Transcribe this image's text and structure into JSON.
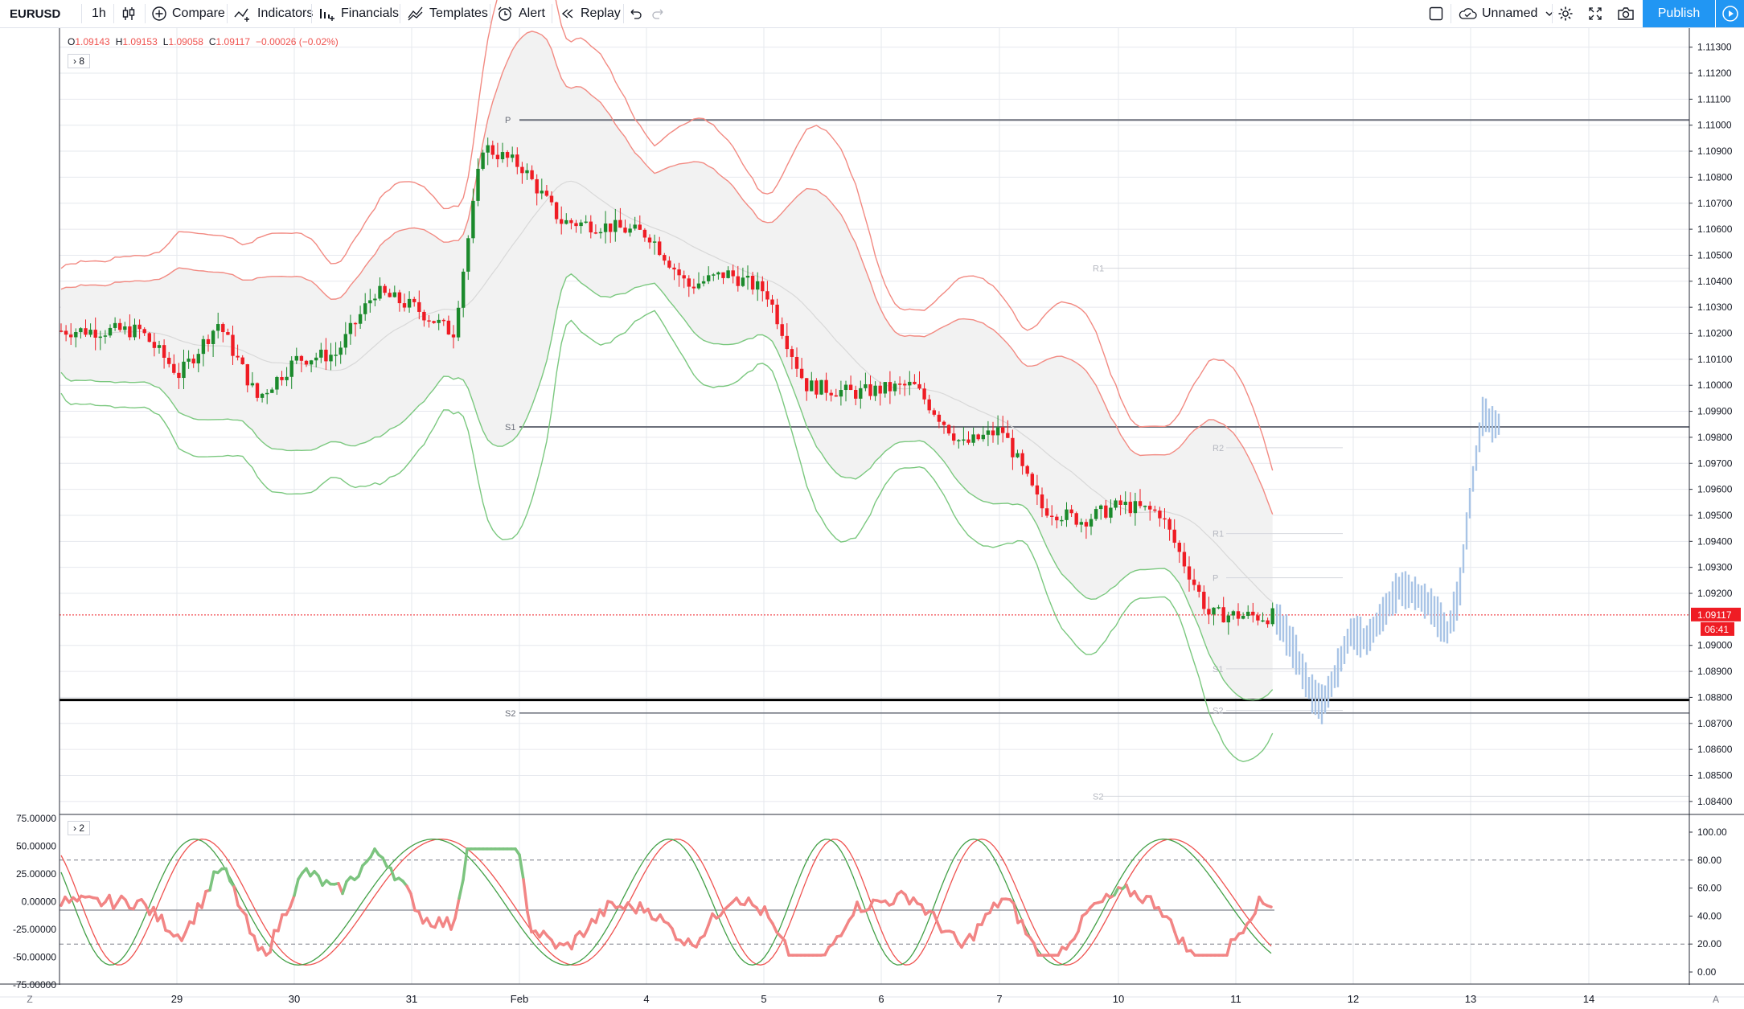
{
  "toolbar": {
    "symbol": "EURUSD",
    "interval": "1h",
    "compare": "Compare",
    "indicators": "Indicators",
    "financials": "Financials",
    "templates": "Templates",
    "alert": "Alert",
    "replay": "Replay",
    "layout_name": "Unnamed",
    "publish": "Publish"
  },
  "legend": {
    "ohlc": [
      {
        "k": "O",
        "v": "1.09143"
      },
      {
        "k": "H",
        "v": "1.09153"
      },
      {
        "k": "L",
        "v": "1.09058"
      },
      {
        "k": "C",
        "v": "1.09117"
      },
      {
        "k": "",
        "v": "−0.00026 (−0.02%)"
      }
    ],
    "main_indicators_count": "8",
    "osc_indicators_count": "2"
  },
  "price_axis": {
    "labels": [
      "1.11300",
      "1.11200",
      "1.11100",
      "1.11000",
      "1.10900",
      "1.10800",
      "1.10700",
      "1.10600",
      "1.10500",
      "1.10400",
      "1.10300",
      "1.10200",
      "1.10100",
      "1.10000",
      "1.09900",
      "1.09800",
      "1.09700",
      "1.09600",
      "1.09500",
      "1.09400",
      "1.09300",
      "1.09200",
      "1.09000",
      "1.08900",
      "1.08800",
      "1.08700",
      "1.08600",
      "1.08500",
      "1.08400"
    ],
    "last_price": "1.09117",
    "countdown": "06:41"
  },
  "osc_axis": {
    "left": [
      "75.00000",
      "50.00000",
      "25.00000",
      "0.00000",
      "-25.00000",
      "-50.00000",
      "-75.00000"
    ],
    "right": [
      "100.00",
      "80.00",
      "60.00",
      "40.00",
      "20.00",
      "0.00"
    ]
  },
  "time_axis": [
    "29",
    "30",
    "31",
    "Feb",
    "4",
    "5",
    "6",
    "7",
    "10",
    "11",
    "12",
    "13",
    "14"
  ],
  "pivots": {
    "weekly": [
      "P",
      "S1",
      "S2"
    ],
    "daily": [
      "R1",
      "S2"
    ],
    "current": [
      "R2",
      "R1",
      "P",
      "S1",
      "S2"
    ]
  },
  "colors": {
    "up": "#1b8a2c",
    "down": "#ef1c24",
    "band_upper": "#f28a82",
    "band_lower": "#7bc87f",
    "projection": "#a9c4e6",
    "accent": "#2196f3"
  },
  "chart_data": {
    "type": "candlestick",
    "symbol": "EURUSD",
    "interval": "1h",
    "ylim": [
      1.0835,
      1.1137
    ],
    "key_levels": {
      "weekly_P": 1.1102,
      "weekly_S1": 1.0984,
      "weekly_S2": 1.0874,
      "support_line": 1.0879,
      "last_price": 1.09117
    },
    "close_path": [
      [
        "29",
        1.1021
      ],
      [
        "29",
        1.1004
      ],
      [
        "29",
        1.1024
      ],
      [
        "30",
        1.0995
      ],
      [
        "30",
        1.101
      ],
      [
        "30",
        1.1012
      ],
      [
        "31",
        1.1036
      ],
      [
        "31",
        1.103
      ],
      [
        "31",
        1.102
      ],
      [
        "Feb",
        1.1092
      ],
      [
        "Feb",
        1.1084
      ],
      [
        "Feb",
        1.1063
      ],
      [
        "4",
        1.1061
      ],
      [
        "4",
        1.1058
      ],
      [
        "4",
        1.1038
      ],
      [
        "5",
        1.1043
      ],
      [
        "5",
        1.1036
      ],
      [
        "5",
        1.1
      ],
      [
        "6",
        1.0997
      ],
      [
        "6",
        1.1
      ],
      [
        "7",
        1.0977
      ],
      [
        "7",
        1.0983
      ],
      [
        "7",
        1.0953
      ],
      [
        "10",
        1.0948
      ],
      [
        "10",
        1.0954
      ],
      [
        "10",
        1.0951
      ],
      [
        "11",
        1.0912
      ],
      [
        "11",
        1.0911
      ]
    ],
    "oscillator": {
      "ylim": [
        0,
        100
      ],
      "levels": [
        80,
        20
      ]
    }
  }
}
